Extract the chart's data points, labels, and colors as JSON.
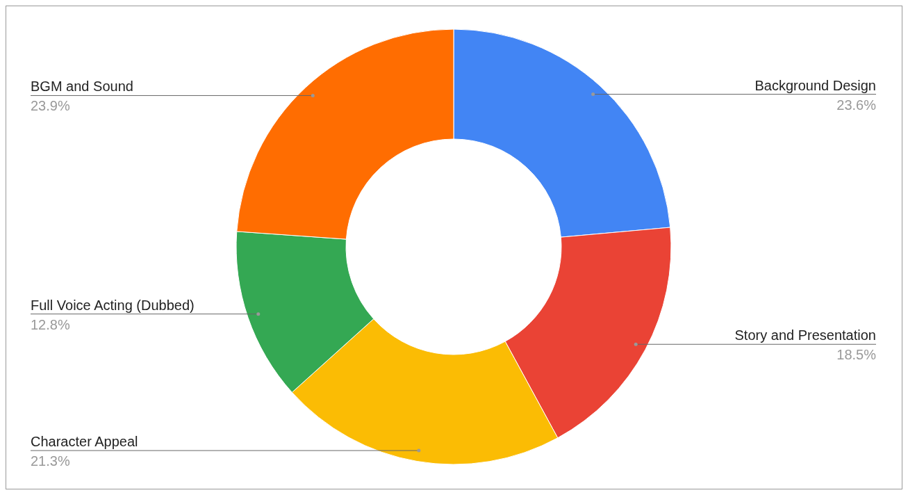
{
  "chart_data": {
    "type": "donut",
    "categories": [
      "Background Design",
      "Story and Presentation",
      "Character Appeal",
      "Full Voice Acting (Dubbed)",
      "BGM and Sound"
    ],
    "values": [
      23.6,
      18.5,
      21.3,
      12.8,
      23.9
    ],
    "colors": [
      "#4285f4",
      "#ea4335",
      "#fbbc04",
      "#34a853",
      "#ff6d01"
    ],
    "value_labels": [
      "23.6%",
      "18.5%",
      "21.3%",
      "12.8%",
      "23.9%"
    ]
  }
}
